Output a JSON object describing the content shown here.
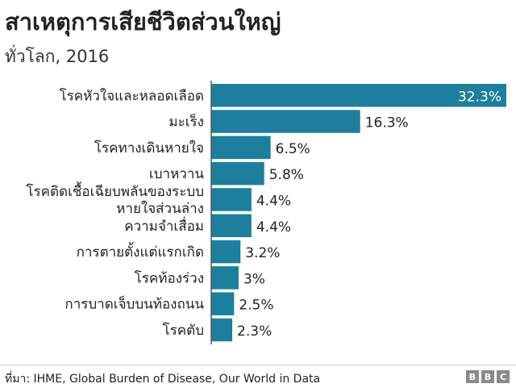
{
  "title": "สาเหตุการเสียชีวิตส่วนใหญ่",
  "subtitle": "ทั่วโลก, 2016",
  "source": "ที่มา: IHME, Global Burden of Disease, Our World in Data",
  "logo": [
    "B",
    "B",
    "C"
  ],
  "colors": {
    "bar": "#1d7f9d",
    "axis": "#555555"
  },
  "chart_data": {
    "type": "bar",
    "orientation": "horizontal",
    "title": "สาเหตุการเสียชีวิตส่วนใหญ่",
    "subtitle": "ทั่วโลก, 2016",
    "categories": [
      [
        "โรคหัวใจและหลอดเลือด"
      ],
      [
        "มะเร็ง"
      ],
      [
        "โรคทางเดินหายใจ"
      ],
      [
        "เบาหวาน"
      ],
      [
        "โรคติดเชื้อเฉียบพลันของระบบ",
        "หายใจส่วนล่าง"
      ],
      [
        "ความจำเสื่อม"
      ],
      [
        "การตายตั้งแต่แรกเกิด"
      ],
      [
        "โรคท้องร่วง"
      ],
      [
        "การบาดเจ็บบนท้องถนน"
      ],
      [
        "โรคตับ"
      ]
    ],
    "values": [
      32.3,
      16.3,
      6.5,
      5.8,
      4.4,
      4.4,
      3.2,
      3,
      2.5,
      2.3
    ],
    "value_labels": [
      "32.3%",
      "16.3%",
      "6.5%",
      "5.8%",
      "4.4%",
      "4.4%",
      "3.2%",
      "3%",
      "2.5%",
      "2.3%"
    ],
    "xlim": [
      0,
      32.3
    ],
    "grid": false
  }
}
